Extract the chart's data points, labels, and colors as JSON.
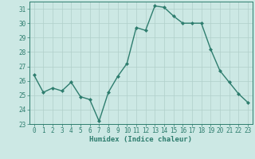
{
  "x": [
    0,
    1,
    2,
    3,
    4,
    5,
    6,
    7,
    8,
    9,
    10,
    11,
    12,
    13,
    14,
    15,
    16,
    17,
    18,
    19,
    20,
    21,
    22,
    23
  ],
  "y": [
    26.4,
    25.2,
    25.5,
    25.3,
    25.9,
    24.9,
    24.7,
    23.2,
    25.2,
    26.3,
    27.2,
    29.7,
    29.5,
    31.2,
    31.1,
    30.5,
    30.0,
    30.0,
    30.0,
    28.2,
    26.7,
    25.9,
    25.1,
    24.5
  ],
  "line_color": "#2e7d6e",
  "marker": "D",
  "marker_size": 2.0,
  "line_width": 1.0,
  "bg_color": "#cce8e4",
  "grid_color": "#b0cfca",
  "xlabel": "Humidex (Indice chaleur)",
  "ylabel": "",
  "xlim": [
    -0.5,
    23.5
  ],
  "ylim": [
    23,
    31.5
  ],
  "yticks": [
    23,
    24,
    25,
    26,
    27,
    28,
    29,
    30,
    31
  ],
  "xticks": [
    0,
    1,
    2,
    3,
    4,
    5,
    6,
    7,
    8,
    9,
    10,
    11,
    12,
    13,
    14,
    15,
    16,
    17,
    18,
    19,
    20,
    21,
    22,
    23
  ],
  "label_fontsize": 6.5,
  "tick_fontsize": 5.5
}
